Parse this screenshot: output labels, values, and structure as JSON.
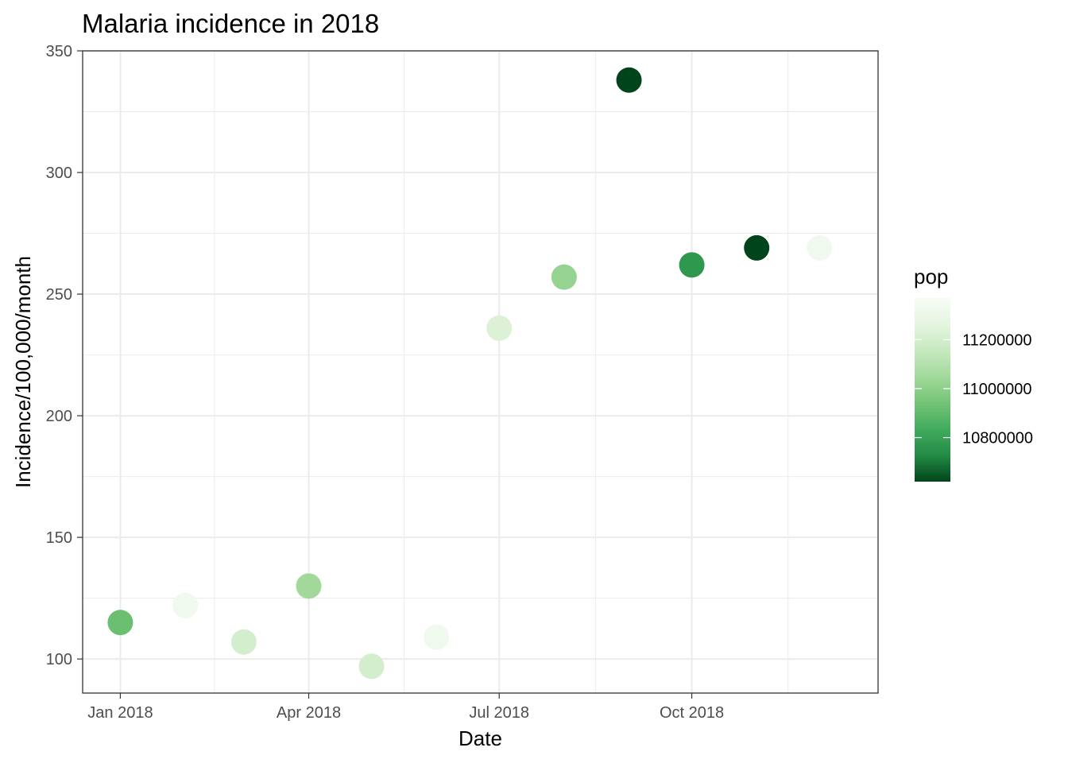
{
  "chart_data": {
    "type": "scatter",
    "title": "Malaria incidence in 2018",
    "xlabel": "Date",
    "ylabel": "Incidence/100,000/month",
    "x_axis_kind": "date",
    "xlim": [
      "2017-12-14",
      "2018-12-29"
    ],
    "ylim": [
      86,
      350
    ],
    "x_ticks": [
      {
        "date": "2018-01-01",
        "label": "Jan 2018"
      },
      {
        "date": "2018-04-01",
        "label": "Apr 2018"
      },
      {
        "date": "2018-07-01",
        "label": "Jul 2018"
      },
      {
        "date": "2018-10-01",
        "label": "Oct 2018"
      }
    ],
    "y_ticks": [
      100,
      150,
      200,
      250,
      300,
      350
    ],
    "grid": true,
    "points": [
      {
        "x": "2018-01-01",
        "y": 115,
        "pop": 10920000
      },
      {
        "x": "2018-02-01",
        "y": 122,
        "pop": 11330000
      },
      {
        "x": "2018-03-01",
        "y": 107,
        "pop": 11200000
      },
      {
        "x": "2018-04-01",
        "y": 130,
        "pop": 11050000
      },
      {
        "x": "2018-05-01",
        "y": 97,
        "pop": 11200000
      },
      {
        "x": "2018-06-01",
        "y": 109,
        "pop": 11330000
      },
      {
        "x": "2018-07-01",
        "y": 236,
        "pop": 11230000
      },
      {
        "x": "2018-08-01",
        "y": 257,
        "pop": 11020000
      },
      {
        "x": "2018-09-01",
        "y": 338,
        "pop": 10620000
      },
      {
        "x": "2018-10-01",
        "y": 262,
        "pop": 10770000
      },
      {
        "x": "2018-11-01",
        "y": 269,
        "pop": 10620000
      },
      {
        "x": "2018-12-01",
        "y": 269,
        "pop": 11330000
      }
    ],
    "color_scale": {
      "variable": "pop",
      "title": "pop",
      "domain": [
        10620000,
        11370000
      ],
      "colors": [
        "#00441b",
        "#238b45",
        "#41ab5d",
        "#74c476",
        "#a1d99b",
        "#c7e9c0",
        "#e5f5e0",
        "#f7fcf5"
      ],
      "ticks": [
        {
          "value": 10800000,
          "label": "10800000"
        },
        {
          "value": 11000000,
          "label": "11000000"
        },
        {
          "value": 11200000,
          "label": "11200000"
        }
      ]
    },
    "legend_position": "right"
  }
}
